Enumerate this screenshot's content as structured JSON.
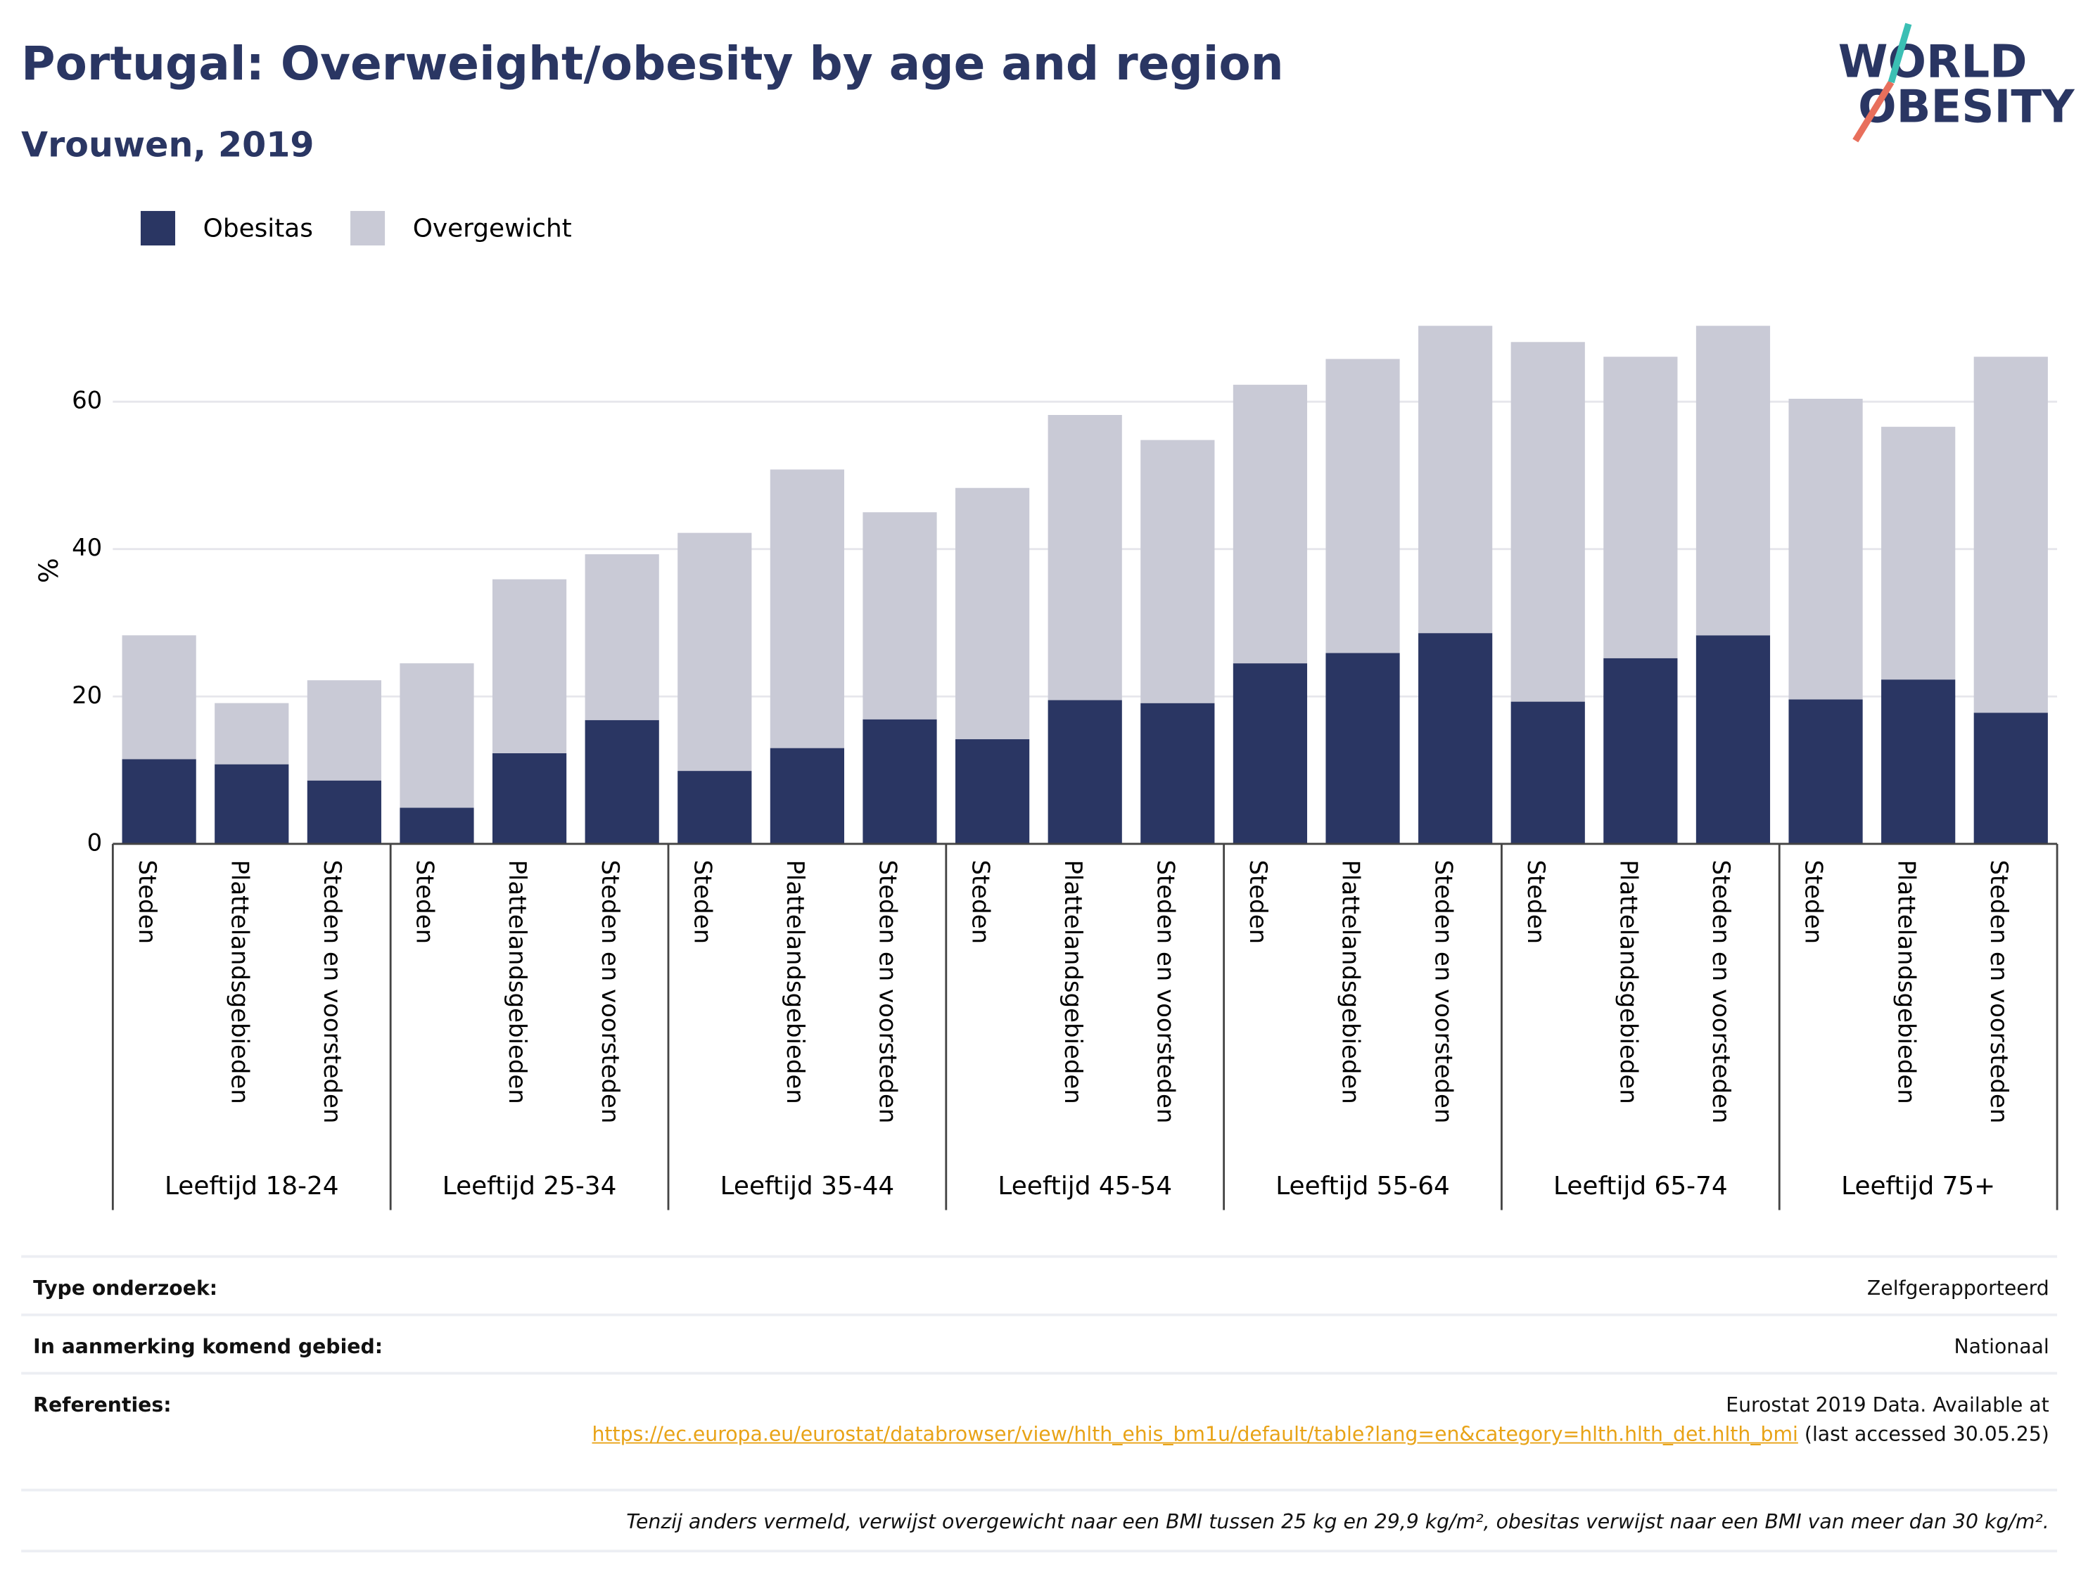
{
  "logo": {
    "line1": "WORLD",
    "line2": "OBESITY"
  },
  "chart_data": {
    "type": "stacked_bar",
    "title": "Portugal: Overweight/obesity by age and region",
    "subtitle": "Vrouwen, 2019",
    "y_label": "%",
    "categories": [
      "Steden",
      "Plattelandsgebieden",
      "Steden en voorsteden",
      "Steden",
      "Plattelandsgebieden",
      "Steden en voorsteden",
      "Steden",
      "Plattelandsgebieden",
      "Steden en voorsteden",
      "Steden",
      "Plattelandsgebieden",
      "Steden en voorsteden",
      "Steden",
      "Plattelandsgebieden",
      "Steden en voorsteden",
      "Steden",
      "Plattelandsgebieden",
      "Steden en voorsteden",
      "Steden",
      "Plattelandsgebieden",
      "Steden en voorsteden"
    ],
    "groups": [
      "Leeftijd 18-24",
      "Leeftijd 25-34",
      "Leeftijd 35-44",
      "Leeftijd 45-54",
      "Leeftijd 55-64",
      "Leeftijd 65-74",
      "Leeftijd 75+"
    ],
    "series": [
      {
        "name": "Obesitas",
        "color": "#2a3663",
        "values": [
          11.5,
          10.8,
          8.6,
          4.9,
          12.3,
          16.8,
          9.9,
          13.0,
          16.9,
          14.2,
          19.5,
          19.1,
          24.5,
          25.9,
          28.6,
          19.3,
          25.2,
          28.3,
          19.6,
          22.3,
          17.8
        ]
      },
      {
        "name": "Overgewicht",
        "color": "#c9cad6",
        "values": [
          16.8,
          8.3,
          13.6,
          19.6,
          23.6,
          22.5,
          32.3,
          37.8,
          28.1,
          34.1,
          38.7,
          35.7,
          37.8,
          39.9,
          41.7,
          48.8,
          40.9,
          42.0,
          40.8,
          34.3,
          48.3
        ]
      }
    ],
    "ylim": [
      0,
      74
    ],
    "yticks": [
      0,
      20,
      40,
      60
    ],
    "grid": true,
    "legend": "top-left"
  },
  "footer": {
    "rows": [
      {
        "label": "Type onderzoek:",
        "value": "Zelfgerapporteerd"
      },
      {
        "label": "In aanmerking komend gebied:",
        "value": "Nationaal"
      }
    ],
    "references": {
      "label": "Referenties:",
      "text_before": "Eurostat 2019 Data. Available at",
      "link": "https://ec.europa.eu/eurostat/databrowser/view/hlth_ehis_bm1u/default/table?lang=en&category=hlth.hlth_det.hlth_bmi",
      "text_after": "(last accessed 30.05.25)"
    },
    "note": "Tenzij anders vermeld, verwijst overgewicht naar een BMI tussen 25 kg en 29,9 kg/m², obesitas verwijst naar een BMI van meer dan 30 kg/m²."
  }
}
